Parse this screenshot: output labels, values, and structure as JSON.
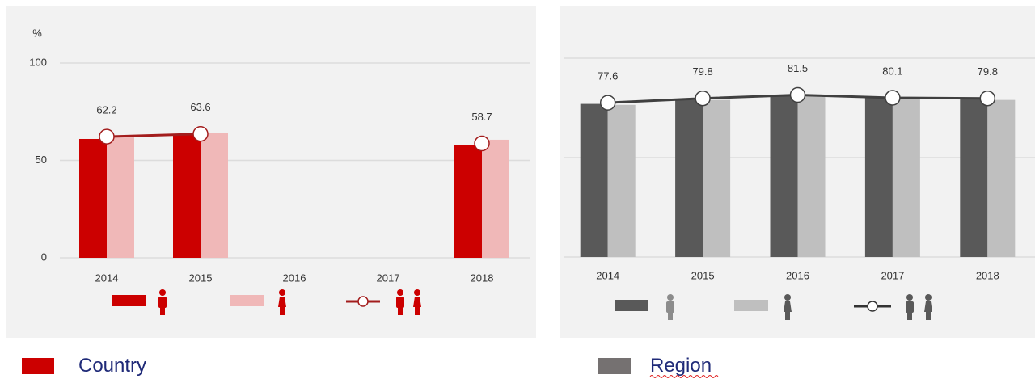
{
  "chart_data": [
    {
      "type": "combo",
      "axis_unit": "%",
      "categories": [
        "2014",
        "2015",
        "2016",
        "2017",
        "2018"
      ],
      "series": [
        {
          "kind": "bar",
          "color": "#cc0000",
          "values": [
            61,
            63.5,
            null,
            null,
            57.7
          ]
        },
        {
          "kind": "bar",
          "color": "#f0b8b8",
          "values": [
            61.8,
            64.3,
            null,
            null,
            60.6
          ]
        },
        {
          "kind": "line",
          "color": "#a31d1d",
          "values": [
            62.2,
            63.6,
            null,
            null,
            58.7
          ]
        }
      ],
      "ylim": [
        0,
        100
      ],
      "yticks": [
        0,
        50,
        100
      ],
      "tick_labels": true,
      "grid": true
    },
    {
      "type": "combo",
      "categories": [
        "2014",
        "2015",
        "2016",
        "2017",
        "2018"
      ],
      "series": [
        {
          "kind": "bar",
          "color": "#595959",
          "values": [
            77,
            79,
            81,
            80,
            79.5
          ]
        },
        {
          "kind": "bar",
          "color": "#bfbfbf",
          "values": [
            76.5,
            79,
            81.5,
            79.5,
            79
          ]
        },
        {
          "kind": "line",
          "color": "#404040",
          "values": [
            77.6,
            79.8,
            81.5,
            80.1,
            79.8
          ]
        }
      ],
      "ylim": [
        0,
        100
      ],
      "yticks": [
        0,
        50,
        100
      ],
      "tick_labels": false,
      "grid": true
    }
  ],
  "legend": {
    "country": "Country",
    "region": "Region"
  }
}
